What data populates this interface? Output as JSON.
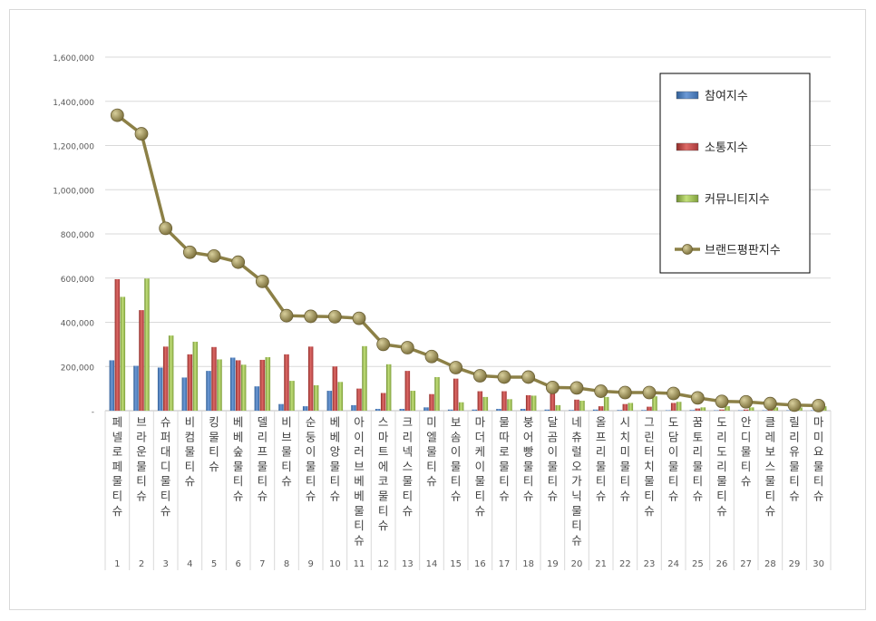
{
  "chart_data": {
    "type": "bar",
    "title": "",
    "xlabel": "",
    "ylabel": "",
    "ylim": [
      0,
      1600000
    ],
    "yticks": [
      "-",
      "200,000",
      "400,000",
      "600,000",
      "800,000",
      "1,000,000",
      "1,200,000",
      "1,400,000",
      "1,600,000"
    ],
    "grid": true,
    "legend_position": "right",
    "ranks": [
      "1",
      "2",
      "3",
      "4",
      "5",
      "6",
      "7",
      "8",
      "9",
      "10",
      "11",
      "12",
      "13",
      "14",
      "15",
      "16",
      "17",
      "18",
      "19",
      "20",
      "21",
      "22",
      "23",
      "24",
      "25",
      "26",
      "27",
      "28",
      "29",
      "30"
    ],
    "categories": [
      "페넬로페물티슈",
      "브라운물티슈",
      "슈퍼대디물티슈",
      "비컴물티슈",
      "킹물티슈",
      "베베숲물티슈",
      "델리프물티슈",
      "비브물티슈",
      "순둥이물티슈",
      "베베앙물티슈",
      "아이러브베베물티슈",
      "스마트에코물티슈",
      "크리넥스물티슈",
      "미엘물티슈",
      "보솜이물티슈",
      "마더케이물티슈",
      "물따로물티슈",
      "붕어빵물티슈",
      "달곰이물티슈",
      "네츄럴오가닉물티슈",
      "올프리물티슈",
      "시치미물티슈",
      "그린터치물티슈",
      "도담이물티슈",
      "꿈토리물티슈",
      "도리도리물티슈",
      "안디물티슈",
      "클레보스물티슈",
      "릴리유물티슈",
      "마미요물티슈"
    ],
    "series": [
      {
        "name": "참여지수",
        "type": "bar",
        "color": "#4f81bd",
        "values": [
          228000,
          203000,
          195000,
          150000,
          180000,
          240000,
          110000,
          30000,
          20000,
          90000,
          25000,
          8000,
          8000,
          15000,
          5000,
          5000,
          8000,
          8000,
          5000,
          3000,
          5000,
          3000,
          3000,
          2000,
          3000,
          2000,
          2000,
          2000,
          2000,
          2000
        ]
      },
      {
        "name": "소통지수",
        "type": "bar",
        "color": "#c0504d",
        "values": [
          595000,
          455000,
          290000,
          255000,
          288000,
          228000,
          230000,
          255000,
          290000,
          200000,
          100000,
          80000,
          180000,
          75000,
          145000,
          88000,
          88000,
          70000,
          85000,
          50000,
          20000,
          30000,
          18000,
          35000,
          10000,
          5000,
          5000,
          5000,
          5000,
          5000
        ]
      },
      {
        "name": "커뮤니티지수",
        "type": "bar",
        "color": "#9bbb59",
        "values": [
          515000,
          598000,
          340000,
          312000,
          232000,
          208000,
          242000,
          135000,
          115000,
          130000,
          292000,
          210000,
          90000,
          152000,
          38000,
          62000,
          52000,
          68000,
          25000,
          45000,
          62000,
          35000,
          65000,
          40000,
          15000,
          20000,
          15000,
          15000,
          15000,
          20000
        ]
      },
      {
        "name": "브랜드평판지수",
        "type": "line",
        "color": "#8c8046",
        "values": [
          1337000,
          1253000,
          825000,
          717000,
          700000,
          672000,
          585000,
          430000,
          427000,
          425000,
          418000,
          300000,
          285000,
          245000,
          195000,
          158000,
          152000,
          152000,
          105000,
          103000,
          88000,
          82000,
          82000,
          78000,
          58000,
          42000,
          40000,
          32000,
          25000,
          23000
        ]
      }
    ]
  }
}
